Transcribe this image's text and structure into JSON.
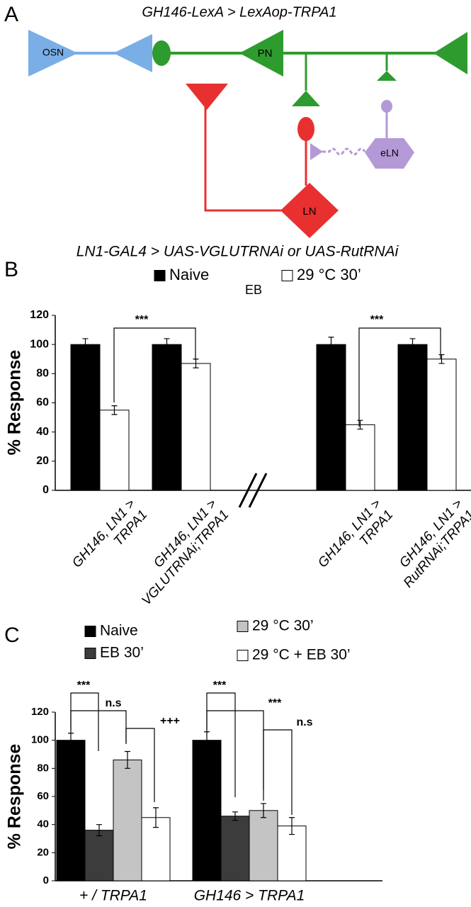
{
  "panel_labels": [
    "A",
    "B",
    "C"
  ],
  "diagram": {
    "top_label": "GH146-LexA > LexAop-TRPA1",
    "bottom_label": "LN1-GAL4 > UAS-VGLUTRNAi or UAS-RutRNAi",
    "nodes": [
      "OSN",
      "PN",
      "LN",
      "eLN"
    ]
  },
  "chart_data": [
    {
      "type": "bar",
      "subtitle": "EB",
      "y_label": "% Response",
      "categories": [
        "GH146, LN1 >\nTRPA1",
        "GH146, LN1 >\nVGLUTRNAi;TRPA1",
        "GH146, LN1 >\nTRPA1",
        "GH146, LN1 >\nRutRNAi;TRPA1"
      ],
      "series": [
        {
          "name": "Naive",
          "color": "#000000",
          "values": [
            100,
            100,
            100,
            100
          ],
          "errors": [
            4,
            4,
            5,
            4
          ]
        },
        {
          "name": "29 °C 30’",
          "color": "#ffffff",
          "values": [
            55,
            87,
            45,
            90
          ],
          "errors": [
            3,
            3,
            3,
            3
          ]
        }
      ],
      "ylim": [
        0,
        120
      ],
      "yticks": [
        0,
        20,
        40,
        60,
        80,
        100,
        120
      ],
      "annotations": [
        "***",
        "***"
      ]
    },
    {
      "type": "bar",
      "y_label": "% Response",
      "categories": [
        "+ / TRPA1",
        "GH146 > TRPA1"
      ],
      "series": [
        {
          "name": "Naive",
          "color": "#000000",
          "values": [
            100,
            100
          ],
          "errors": [
            5,
            6
          ]
        },
        {
          "name": "EB 30’",
          "color": "#3c3c3c",
          "values": [
            36,
            46
          ],
          "errors": [
            4,
            3
          ]
        },
        {
          "name": "29 °C 30’",
          "color": "#c4c4c4",
          "values": [
            86,
            50
          ],
          "errors": [
            6,
            5
          ]
        },
        {
          "name": "29 °C + EB 30’",
          "color": "#ffffff",
          "values": [
            45,
            39
          ],
          "errors": [
            7,
            6
          ]
        }
      ],
      "ylim": [
        0,
        120
      ],
      "yticks": [
        0,
        20,
        40,
        60,
        80,
        100,
        120
      ],
      "annotations": [
        "***",
        "n.s",
        "+++",
        "***",
        "***",
        "n.s"
      ]
    }
  ]
}
